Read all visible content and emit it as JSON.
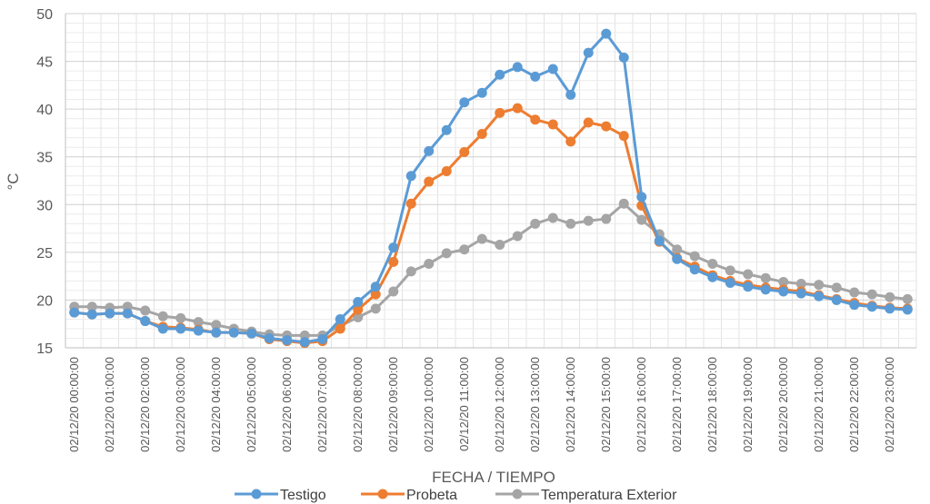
{
  "chart_data": {
    "type": "line",
    "title": "",
    "xlabel": "FECHA / TIEMPO",
    "ylabel": "°C",
    "ylim": [
      15,
      50
    ],
    "yticks": [
      15,
      20,
      25,
      30,
      35,
      40,
      45,
      50
    ],
    "grid": true,
    "legend_position": "bottom",
    "x_tick_labels": [
      "02/12/20 00:00:00",
      "02/12/20 01:00:00",
      "02/12/20 02:00:00",
      "02/12/20 03:00:00",
      "02/12/20 04:00:00",
      "02/12/20 05:00:00",
      "02/12/20 06:00:00",
      "02/12/20 07:00:00",
      "02/12/20 08:00:00",
      "02/12/20 09:00:00",
      "02/12/20 10:00:00",
      "02/12/20 11:00:00",
      "02/12/20 12:00:00",
      "02/12/20 13:00:00",
      "02/12/20 14:00:00",
      "02/12/20 15:00:00",
      "02/12/20 16:00:00",
      "02/12/20 17:00:00",
      "02/12/20 18:00:00",
      "02/12/20 19:00:00",
      "02/12/20 20:00:00",
      "02/12/20 21:00:00",
      "02/12/20 22:00:00",
      "02/12/20 23:00:00"
    ],
    "series": [
      {
        "name": "Testigo",
        "color": "#5B9BD5",
        "values": [
          18.7,
          18.5,
          18.6,
          18.6,
          17.8,
          17.0,
          17.0,
          16.8,
          16.6,
          16.6,
          16.5,
          16.0,
          15.8,
          15.6,
          15.9,
          18.0,
          19.8,
          21.4,
          25.5,
          33.0,
          35.6,
          37.8,
          40.7,
          41.7,
          43.6,
          44.4,
          43.4,
          44.2,
          41.5,
          45.9,
          47.9,
          45.4,
          30.8,
          26.2,
          24.3,
          23.2,
          22.4,
          21.8,
          21.4,
          21.1,
          20.9,
          20.7,
          20.4,
          20.0,
          19.5,
          19.3,
          19.1,
          19.0
        ]
      },
      {
        "name": "Probeta",
        "color": "#ED7D31",
        "values": [
          18.7,
          18.5,
          18.6,
          18.6,
          17.8,
          17.2,
          17.1,
          16.9,
          16.6,
          16.6,
          16.5,
          15.9,
          15.7,
          15.5,
          15.7,
          17.0,
          19.0,
          20.6,
          24.0,
          30.1,
          32.4,
          33.5,
          35.5,
          37.4,
          39.6,
          40.1,
          38.9,
          38.4,
          36.6,
          38.6,
          38.2,
          37.2,
          29.9,
          26.1,
          24.4,
          23.5,
          22.6,
          22.0,
          21.6,
          21.3,
          21.1,
          20.9,
          20.5,
          20.1,
          19.7,
          19.4,
          19.2,
          19.1
        ]
      },
      {
        "name": "Temperatura Exterior",
        "color": "#A5A5A5",
        "values": [
          19.3,
          19.3,
          19.2,
          19.3,
          18.9,
          18.3,
          18.1,
          17.7,
          17.4,
          17.0,
          16.7,
          16.4,
          16.3,
          16.3,
          16.3,
          17.3,
          18.2,
          19.1,
          20.9,
          23.0,
          23.8,
          24.9,
          25.3,
          26.4,
          25.8,
          26.7,
          28.0,
          28.6,
          28.0,
          28.3,
          28.5,
          30.1,
          28.4,
          26.9,
          25.3,
          24.6,
          23.8,
          23.1,
          22.7,
          22.3,
          21.9,
          21.7,
          21.6,
          21.3,
          20.8,
          20.6,
          20.3,
          20.1
        ]
      }
    ]
  }
}
